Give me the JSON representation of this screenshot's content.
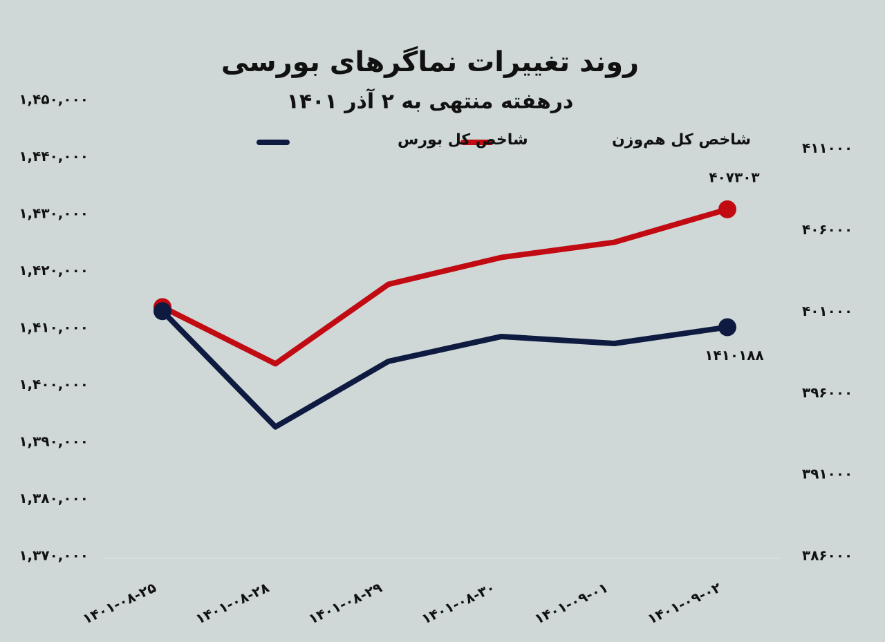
{
  "chart_data": {
    "type": "line",
    "title": "روند تغییرات نماگرهای بورسی",
    "subtitle": "درهفته منتهی به ۲ آذر ۱۴۰۱",
    "categories": [
      "۱۴۰۱-۰۸-۲۵",
      "۱۴۰۱-۰۸-۲۸",
      "۱۴۰۱-۰۸-۲۹",
      "۱۴۰۱-۰۸-۳۰",
      "۱۴۰۱-۰۹-۰۱",
      "۱۴۰۱-۰۹-۰۲"
    ],
    "series": [
      {
        "name": "شاخص کل هم‌وزن",
        "color": "#c10a12",
        "axis": "y2",
        "values": [
          401300,
          397820,
          402700,
          404350,
          405280,
          407303
        ],
        "value_labels": [
          null,
          null,
          null,
          null,
          null,
          "۴۰۷۳۰۳"
        ]
      },
      {
        "name": "شاخص کل بورس",
        "color": "#0e1a40",
        "values": [
          1413000,
          1392700,
          1404200,
          1408550,
          1407330,
          1410188
        ],
        "value_labels": [
          null,
          null,
          null,
          null,
          null,
          "۱۴۱۰۱۸۸"
        ]
      }
    ],
    "ylim": [
      1370000,
      1450000
    ],
    "yticks": [
      {
        "value": 1370000,
        "label": "۱,۳۷۰,۰۰۰"
      },
      {
        "value": 1380000,
        "label": "۱,۳۸۰,۰۰۰"
      },
      {
        "value": 1390000,
        "label": "۱,۳۹۰,۰۰۰"
      },
      {
        "value": 1400000,
        "label": "۱,۴۰۰,۰۰۰"
      },
      {
        "value": 1410000,
        "label": "۱,۴۱۰,۰۰۰"
      },
      {
        "value": 1420000,
        "label": "۱,۴۲۰,۰۰۰"
      },
      {
        "value": 1430000,
        "label": "۱,۴۳۰,۰۰۰"
      },
      {
        "value": 1440000,
        "label": "۱,۴۴۰,۰۰۰"
      },
      {
        "value": 1450000,
        "label": "۱,۴۵۰,۰۰۰"
      }
    ],
    "y2lim": [
      386000,
      414000
    ],
    "y2ticks": [
      {
        "value": 386000,
        "label": "۳۸۶۰۰۰"
      },
      {
        "value": 391000,
        "label": "۳۹۱۰۰۰"
      },
      {
        "value": 396000,
        "label": "۳۹۶۰۰۰"
      },
      {
        "value": 401000,
        "label": "۴۰۱۰۰۰"
      },
      {
        "value": 406000,
        "label": "۴۰۶۰۰۰"
      },
      {
        "value": 411000,
        "label": "۴۱۱۰۰۰"
      }
    ],
    "grid": false
  }
}
